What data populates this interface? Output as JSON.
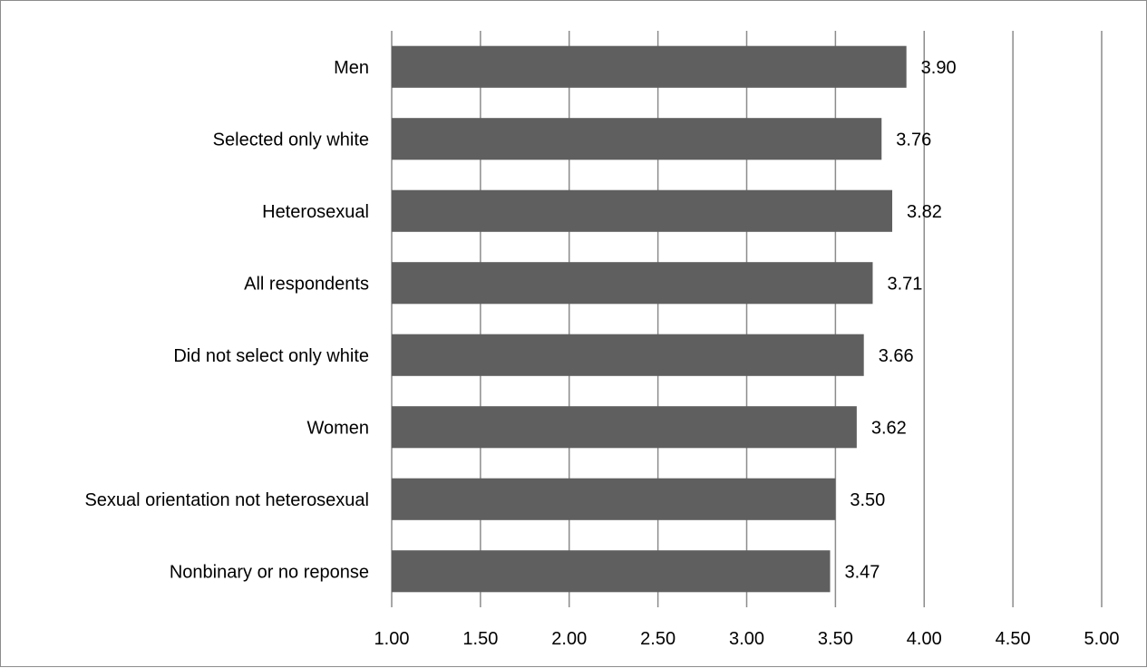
{
  "chart_data": {
    "type": "bar",
    "orientation": "horizontal",
    "title": "",
    "xlabel": "",
    "ylabel": "",
    "xlim": [
      1.0,
      5.0
    ],
    "x_ticks": [
      "1.00",
      "1.50",
      "2.00",
      "2.50",
      "3.00",
      "3.50",
      "4.00",
      "4.50",
      "5.00"
    ],
    "grid": true,
    "legend": "none",
    "bar_color": "#5f5f5f",
    "grid_color": "#8c8c8c",
    "categories": [
      "Men",
      "Selected only white",
      "Heterosexual",
      "All respondents",
      "Did not select only white",
      "Women",
      "Sexual orientation not heterosexual",
      "Nonbinary or no reponse"
    ],
    "values": [
      3.9,
      3.76,
      3.82,
      3.71,
      3.66,
      3.62,
      3.5,
      3.47
    ],
    "data_labels": [
      "3.90",
      "3.76",
      "3.82",
      "3.71",
      "3.66",
      "3.62",
      "3.50",
      "3.47"
    ]
  }
}
